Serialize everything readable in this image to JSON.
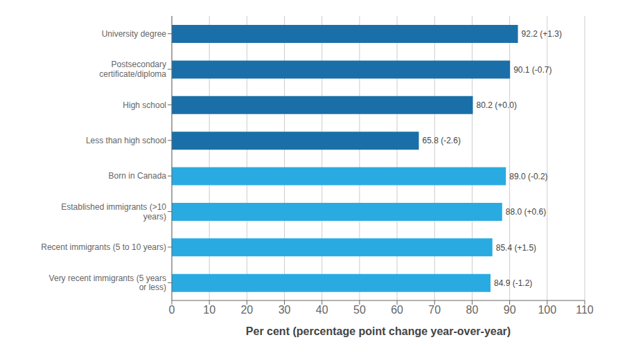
{
  "chart_data": {
    "type": "bar",
    "orientation": "horizontal",
    "categories": [
      "University degree",
      "Postsecondary\ncertificate/diploma",
      "High school",
      "Less than high school",
      "Born in Canada",
      "Established immigrants (>10\nyears)",
      "Recent immigrants (5 to 10 years)",
      "Very recent immigrants (5 years\nor less)"
    ],
    "values": [
      92.2,
      90.1,
      80.2,
      65.8,
      89.0,
      88.0,
      85.4,
      84.9
    ],
    "value_labels": [
      "92.2 (+1.3)",
      "90.1 (-0.7)",
      "80.2 (+0.0)",
      "65.8 (-2.6)",
      "89.0 (-0.2)",
      "88.0 (+0.6)",
      "85.4 (+1.5)",
      "84.9 (-1.2)"
    ],
    "colors": [
      "#1a6fa8",
      "#1a6fa8",
      "#1a6fa8",
      "#1a6fa8",
      "#29abe2",
      "#29abe2",
      "#29abe2",
      "#29abe2"
    ],
    "xlabel": "Per cent (percentage point change year-over-year)",
    "xlim": [
      0,
      110
    ],
    "xticks": [
      0,
      10,
      20,
      30,
      40,
      50,
      60,
      70,
      80,
      90,
      100,
      110
    ],
    "grid": true,
    "data_labels": true
  }
}
